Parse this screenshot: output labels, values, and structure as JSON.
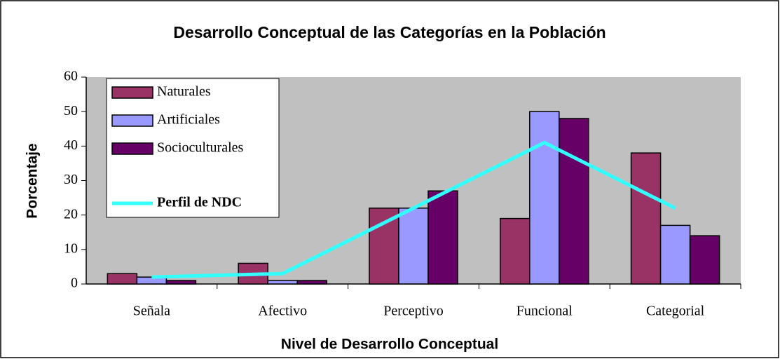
{
  "chart_data": {
    "type": "bar",
    "title": "Desarrollo Conceptual de las Categorías en la Población",
    "x_label": "Nivel de Desarrollo Conceptual",
    "y_label": "Porcentaje",
    "categories": [
      "Señala",
      "Afectivo",
      "Perceptivo",
      "Funcional",
      "Categorial"
    ],
    "series": [
      {
        "name": "Naturales",
        "color": "#993366",
        "values": [
          3,
          6,
          22,
          19,
          38
        ]
      },
      {
        "name": "Artificiales",
        "color": "#9999ff",
        "values": [
          2,
          1,
          22,
          50,
          17
        ]
      },
      {
        "name": "Socioculturales",
        "color": "#660066",
        "values": [
          1,
          1,
          27,
          48,
          14
        ]
      },
      {
        "name": "Perfil de NDC",
        "color": "#33ffff",
        "type": "line",
        "values": [
          2,
          3,
          22,
          41,
          22
        ]
      }
    ],
    "ylim": [
      0,
      60
    ],
    "yticks": [
      0,
      10,
      20,
      30,
      40,
      50,
      60
    ],
    "plot_background": "#c0c0c0",
    "legend": "upper left"
  }
}
